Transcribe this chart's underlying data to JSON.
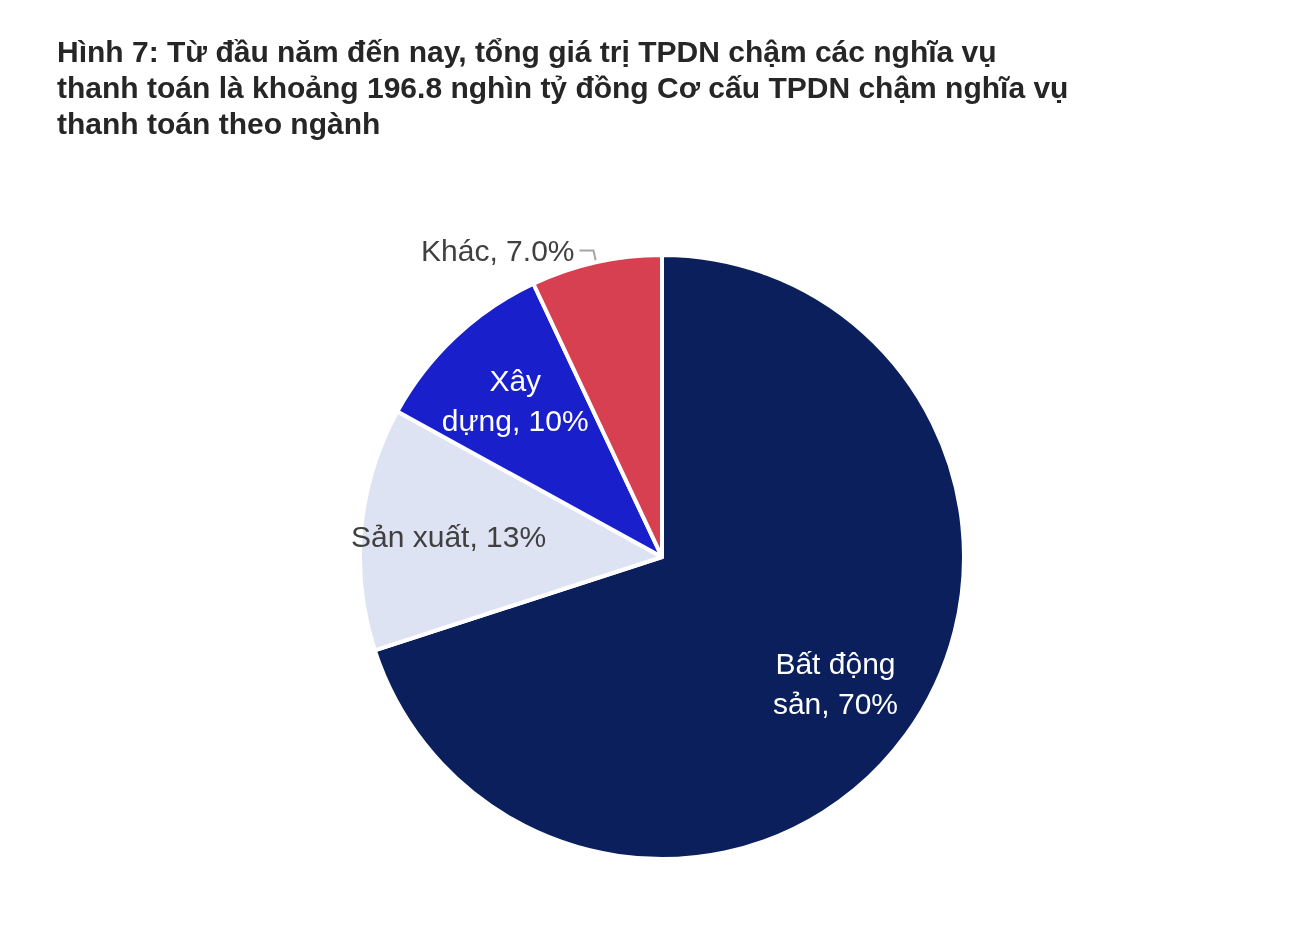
{
  "chart_data": {
    "type": "pie",
    "title": "Hình 7: Từ đầu năm đến nay, tổng giá trị TPDN chậm các nghĩa vụ thanh toán là khoảng 196.8 nghìn tỷ đồng Cơ cấu TPDN chậm nghĩa vụ thanh toán theo ngành",
    "categories": [
      "Bất động sản",
      "Sản xuất",
      "Xây dựng",
      "Khác"
    ],
    "values": [
      70,
      13,
      10,
      7.0
    ],
    "value_labels": [
      "70%",
      "13%",
      "10%",
      "7.0%"
    ],
    "colors": [
      "#0a1f5c",
      "#dde3f3",
      "#1a1fcc",
      "#d64050"
    ],
    "legend": false
  }
}
